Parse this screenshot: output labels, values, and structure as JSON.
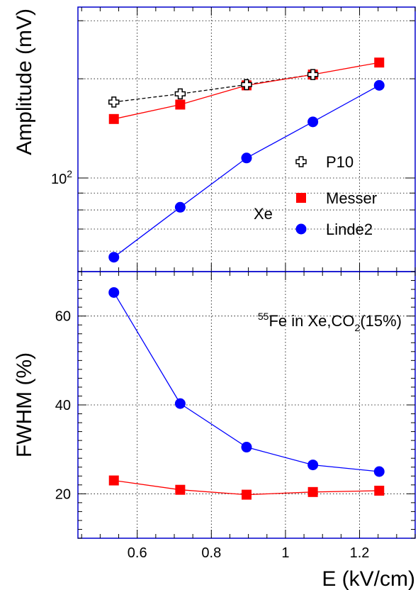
{
  "chart_data": [
    {
      "type": "line",
      "panel": "top",
      "ylabel": "Amplitude (mV)",
      "yscale": "log",
      "xlim": [
        0.44,
        1.35
      ],
      "ylim": [
        52,
        330
      ],
      "ytick_labels": [
        {
          "base": "10",
          "exp": "2",
          "value": 100
        }
      ],
      "grid": true,
      "x": [
        0.537,
        0.716,
        0.895,
        1.074,
        1.253
      ],
      "series": [
        {
          "name": "P10",
          "marker": "open-cross",
          "color": "#000000",
          "line": "dashed",
          "x": [
            0.537,
            0.716,
            0.895,
            1.074
          ],
          "values": [
            170,
            180,
            192,
            206
          ]
        },
        {
          "name": "Messer",
          "marker": "square",
          "color": "#ff0000",
          "line": "solid",
          "x": [
            0.537,
            0.716,
            0.895,
            1.074,
            1.253
          ],
          "values": [
            151,
            167,
            191,
            206,
            224
          ]
        },
        {
          "name": "Linde2",
          "marker": "circle",
          "color": "#0000ff",
          "line": "solid",
          "x": [
            0.537,
            0.716,
            0.895,
            1.074,
            1.253
          ],
          "values": [
            57.5,
            81.5,
            115,
            148,
            191
          ]
        }
      ],
      "annotation": "Xe",
      "legend_position": "right"
    },
    {
      "type": "line",
      "panel": "bottom",
      "xlabel": "E (kV/cm)",
      "ylabel": "FWHM (%)",
      "xlim": [
        0.44,
        1.35
      ],
      "ylim": [
        10,
        70
      ],
      "xticks": [
        0.6,
        0.8,
        1,
        1.2
      ],
      "xtick_labels": [
        "0.6",
        "0.8",
        "1",
        "1.2"
      ],
      "yticks": [
        20,
        40,
        60
      ],
      "ytick_labels": [
        "20",
        "40",
        "60"
      ],
      "grid": true,
      "series": [
        {
          "name": "Messer",
          "marker": "square",
          "color": "#ff0000",
          "x": [
            0.537,
            0.716,
            0.895,
            1.074,
            1.253
          ],
          "values": [
            23.0,
            20.9,
            19.8,
            20.4,
            20.7
          ]
        },
        {
          "name": "Linde2",
          "marker": "circle",
          "color": "#0000ff",
          "x": [
            0.537,
            0.716,
            0.895,
            1.074,
            1.253
          ],
          "values": [
            65.3,
            40.3,
            30.5,
            26.5,
            25.0
          ]
        }
      ],
      "annotation": {
        "pre": "55",
        "a": "Fe in Xe,CO",
        "sub": "2",
        "b": "(15%)"
      }
    }
  ],
  "colors": {
    "frame": "#0000cc",
    "grid": "#000000"
  }
}
